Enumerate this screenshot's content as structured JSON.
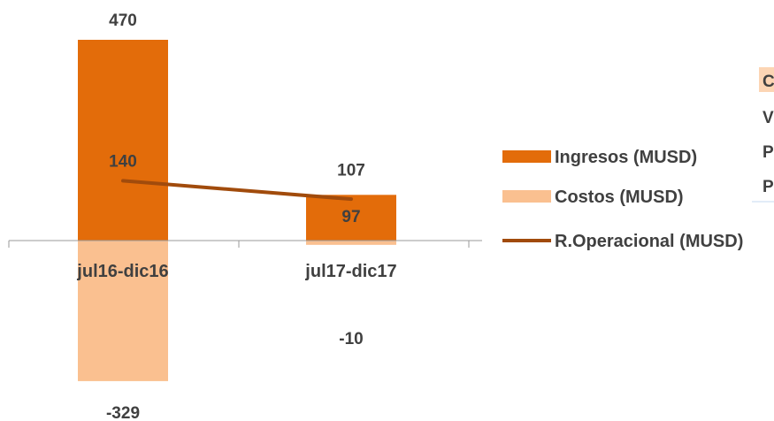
{
  "chart_data": {
    "type": "bar",
    "categories": [
      "jul16-dic16",
      "jul17-dic17"
    ],
    "series": [
      {
        "name": "Ingresos (MUSD)",
        "kind": "bar",
        "values": [
          470,
          107
        ],
        "labels": [
          "470",
          "107"
        ],
        "color": "#e36c0a"
      },
      {
        "name": "Costos (MUSD)",
        "kind": "bar",
        "values": [
          -329,
          -10
        ],
        "labels": [
          "-329",
          "-10"
        ],
        "color": "#fac090"
      },
      {
        "name": "R.Operacional (MUSD)",
        "kind": "line",
        "values": [
          140,
          97
        ],
        "labels": [
          "140",
          "97"
        ],
        "color": "#a14b0c"
      }
    ],
    "ylim": [
      -329,
      470
    ],
    "grid": false,
    "legend": "right"
  },
  "table_fragment": {
    "rows": [
      "C",
      "V",
      "P",
      "P"
    ]
  }
}
